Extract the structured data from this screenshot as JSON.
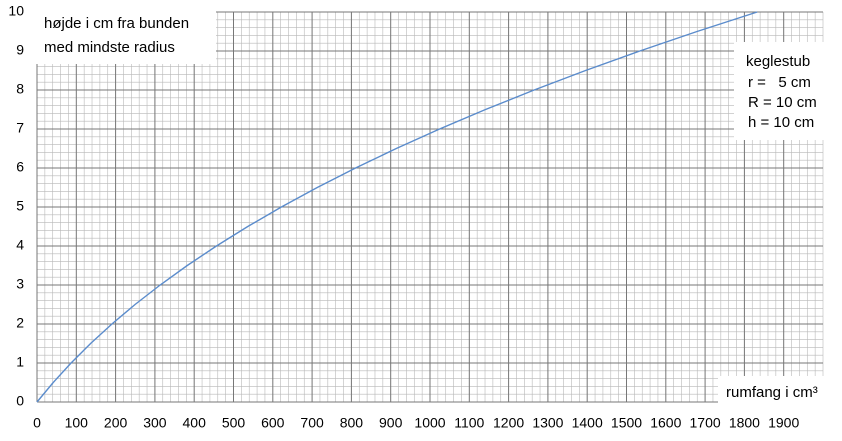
{
  "chart_data": {
    "type": "line",
    "y_label_lines": [
      "højde i cm fra bunden",
      "med mindste radius"
    ],
    "x_label": "rumfang i cm³",
    "annotation_lines": [
      "keglestub",
      "r =   5 cm",
      "R = 10 cm",
      "h = 10 cm"
    ],
    "x": [
      0,
      41.27,
      86.66,
      136.37,
      190.59,
      249.53,
      313.38,
      382.33,
      456.58,
      536.33,
      621.77,
      713.11,
      810.53,
      914.24,
      1024.42,
      1141.28,
      1265.02,
      1395.82,
      1533.89,
      1679.42,
      1832.6
    ],
    "series": [
      {
        "color": "#5b8ccc",
        "values": [
          0,
          0.5,
          1,
          1.5,
          2,
          2.5,
          3,
          3.5,
          4,
          4.5,
          5,
          5.5,
          6,
          6.5,
          7,
          7.5,
          8,
          8.5,
          9,
          9.5,
          10
        ]
      }
    ],
    "xlim": [
      0,
      2000
    ],
    "ylim": [
      0,
      10
    ],
    "xticks": [
      0,
      100,
      200,
      300,
      400,
      500,
      600,
      700,
      800,
      900,
      1000,
      1100,
      1200,
      1300,
      1400,
      1500,
      1600,
      1700,
      1800,
      1900
    ],
    "yticks": [
      0,
      1,
      2,
      3,
      4,
      5,
      6,
      7,
      8,
      9,
      10
    ],
    "grid": true,
    "minor_grid_divisions": 5
  }
}
